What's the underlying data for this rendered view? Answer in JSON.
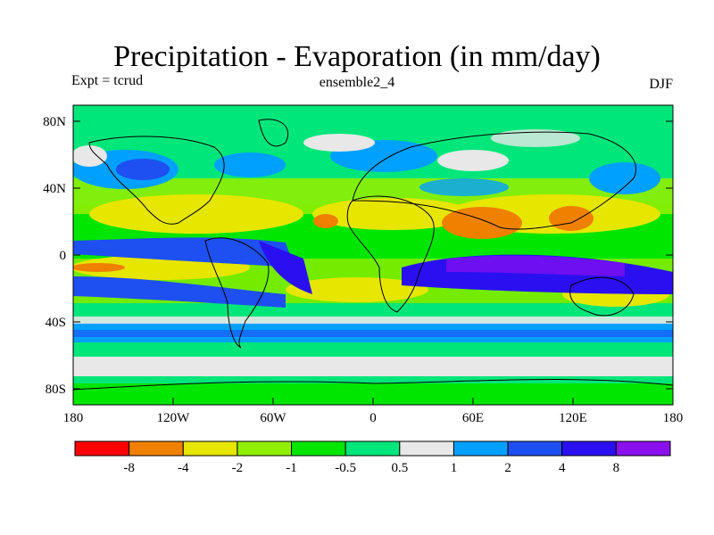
{
  "title": "Precipitation - Evaporation (in mm/day)",
  "subtitle_left": "Expt = tcrud",
  "subtitle_center": "ensemble2_4",
  "subtitle_right": "DJF",
  "lat_labels": [
    "80N",
    "40N",
    "0",
    "40S",
    "80S"
  ],
  "lon_labels": [
    "180",
    "120W",
    "60W",
    "0",
    "60E",
    "120E",
    "180"
  ],
  "colorbar": {
    "labels": [
      "-8",
      "-4",
      "-2",
      "-1",
      "-0.5",
      "0.5",
      "1",
      "2",
      "4",
      "8"
    ],
    "colors": [
      "#ff0000",
      "#f08000",
      "#e6e600",
      "#90ee00",
      "#00e600",
      "#00e67a",
      "#e8e8e8",
      "#00a0ff",
      "#1e4ff0",
      "#2a10f0",
      "#8a10f0"
    ]
  },
  "legend_tick_values": [
    "-8",
    "-4",
    "-2",
    "-1",
    "-0.5",
    "0.5",
    "1",
    "2",
    "4",
    "8"
  ]
}
